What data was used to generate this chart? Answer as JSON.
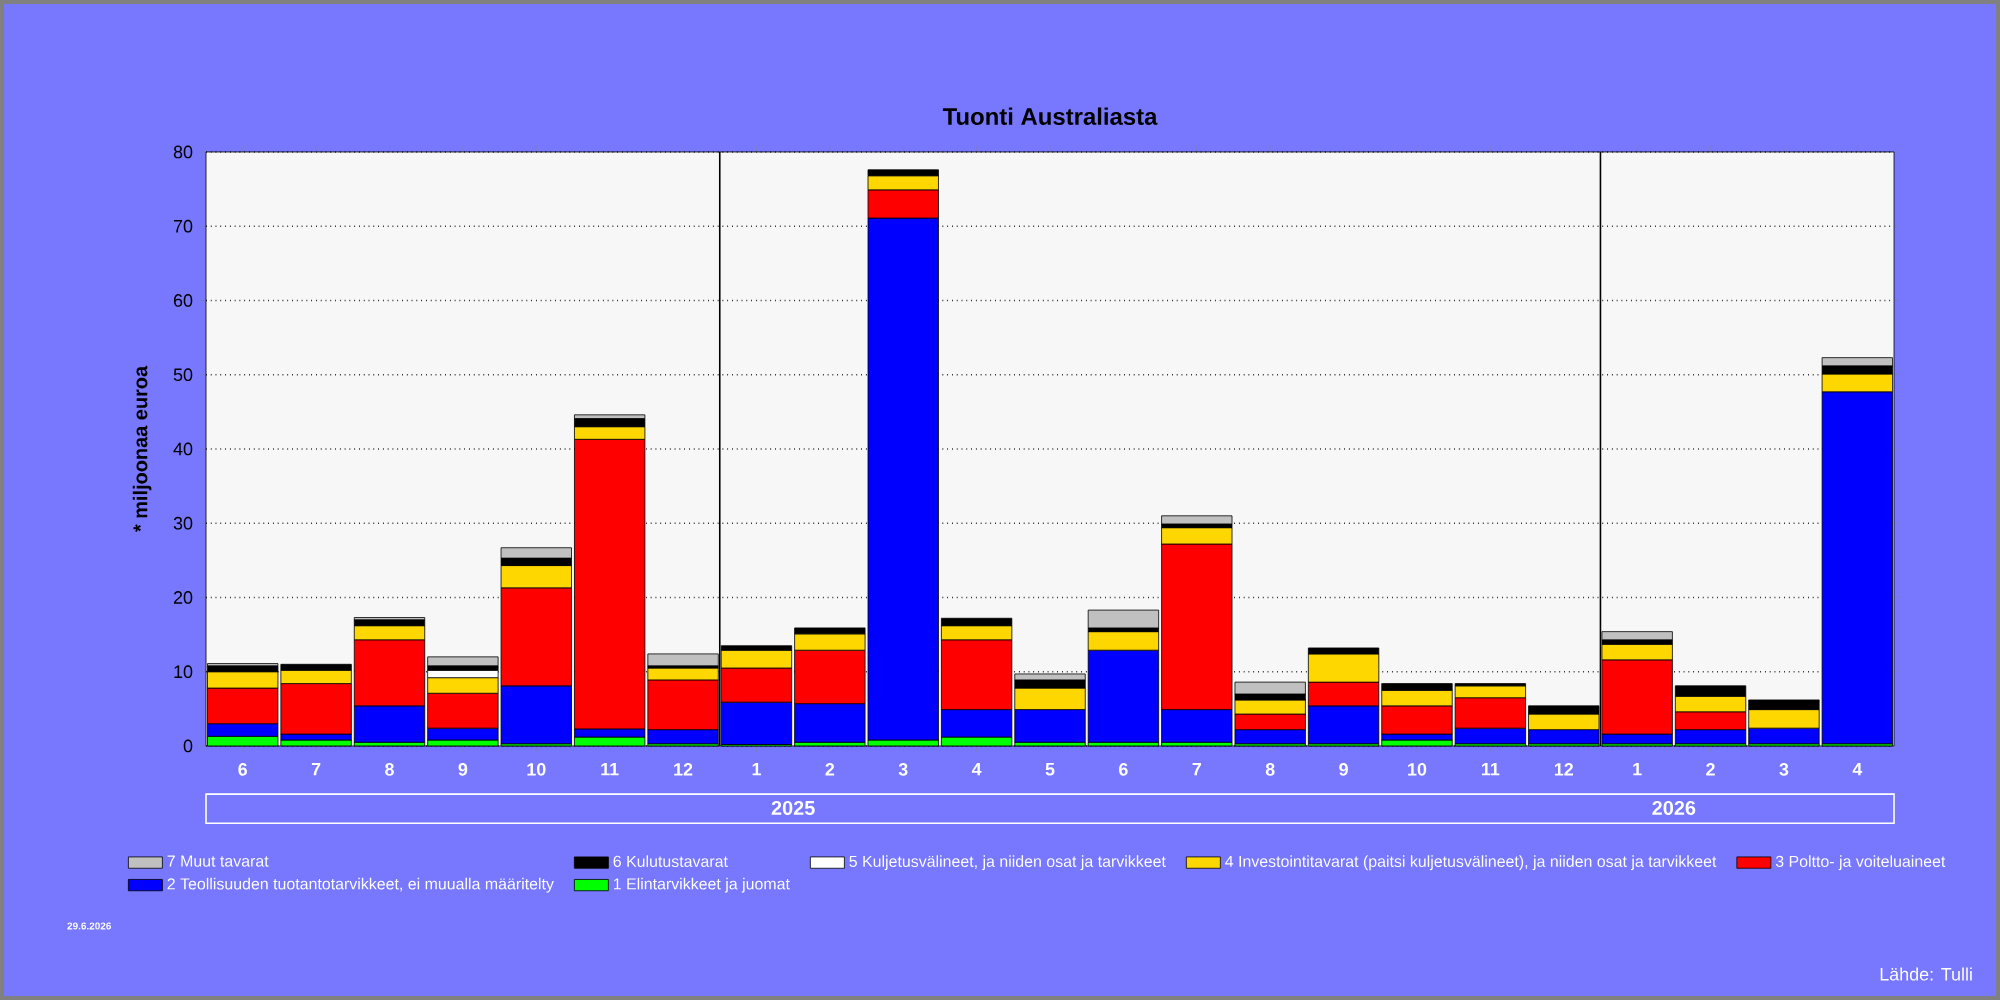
{
  "chart_data": {
    "type": "bar",
    "stacked": true,
    "title": "Tuonti Australiasta",
    "ylabel": "* miljoonaa euroa",
    "categories": [
      "6",
      "7",
      "8",
      "9",
      "10",
      "11",
      "12",
      "1",
      "2",
      "3",
      "4",
      "5",
      "6",
      "7",
      "8",
      "9",
      "10",
      "11",
      "12",
      "1",
      "2",
      "3",
      "4"
    ],
    "series": [
      {
        "name": "1 Elintarvikkeet ja juomat",
        "color": "#00ff00",
        "values": [
          1.3,
          0.8,
          0.5,
          0.8,
          0.3,
          1.2,
          0.3,
          0.2,
          0.5,
          0.8,
          1.2,
          0.5,
          0.5,
          0.5,
          0.3,
          0.3,
          0.8,
          0.3,
          0.3,
          0.3,
          0.3,
          0.3,
          0.3
        ]
      },
      {
        "name": "2 Teollisuuden tuotantotarvikkeet, ei muualla määritelty",
        "color": "#0000ff",
        "values": [
          1.7,
          0.8,
          4.9,
          1.6,
          7.8,
          1.1,
          1.9,
          5.7,
          5.2,
          70.3,
          3.7,
          4.4,
          12.4,
          4.4,
          1.9,
          5.1,
          0.8,
          2.1,
          1.9,
          1.3,
          1.9,
          2.1,
          47.4
        ]
      },
      {
        "name": "3 Poltto- ja voiteluaineet",
        "color": "#ff0000",
        "values": [
          4.8,
          6.8,
          8.9,
          4.7,
          13.2,
          39.0,
          6.7,
          4.6,
          7.2,
          3.8,
          9.4,
          0,
          0,
          22.3,
          2.1,
          3.2,
          3.8,
          4.1,
          0,
          10.0,
          2.4,
          0,
          0
        ]
      },
      {
        "name": "4 Investointitavarat (paitsi kuljetusvälineet), ja niiden osat ja tarvikkeet",
        "color": "#ffd700",
        "values": [
          2.2,
          1.8,
          1.9,
          2.1,
          3.0,
          1.7,
          1.6,
          2.4,
          2.2,
          1.9,
          1.9,
          2.9,
          2.5,
          2.2,
          1.9,
          3.8,
          2.1,
          1.6,
          2.1,
          2.1,
          2.1,
          2.5,
          2.4
        ]
      },
      {
        "name": "5 Kuljetusvälineet, ja niiden osat ja tarvikkeet",
        "color": "#ffffff",
        "values": [
          0,
          0,
          0,
          1.0,
          0,
          0,
          0,
          0,
          0,
          0,
          0,
          0,
          0,
          0,
          0,
          0,
          0,
          0,
          0,
          0,
          0,
          0,
          0
        ]
      },
      {
        "name": "6 Kulutustavarat",
        "color": "#000000",
        "values": [
          0.8,
          0.8,
          0.8,
          0.6,
          1.0,
          1.1,
          0.3,
          0.6,
          0.8,
          0.8,
          1.0,
          1.1,
          0.5,
          0.5,
          0.8,
          0.8,
          0.9,
          0.3,
          1.1,
          0.6,
          1.4,
          1.3,
          1.1
        ]
      },
      {
        "name": "7 Muut tavarat",
        "color": "#c0c0c0",
        "values": [
          0.3,
          0,
          0.3,
          1.2,
          1.4,
          0.5,
          1.6,
          0,
          0,
          0,
          0,
          0.8,
          2.4,
          1.1,
          1.6,
          0,
          0,
          0,
          0,
          1.1,
          0,
          0,
          1.1
        ]
      }
    ],
    "ylim": [
      0,
      80
    ],
    "yticks": [
      0,
      10,
      20,
      30,
      40,
      50,
      60,
      70,
      80
    ],
    "grid": "y",
    "legend": "bottom",
    "annotations": [
      "2025",
      "2026",
      "29.6.2026",
      "Lähde: Tulli"
    ]
  }
}
